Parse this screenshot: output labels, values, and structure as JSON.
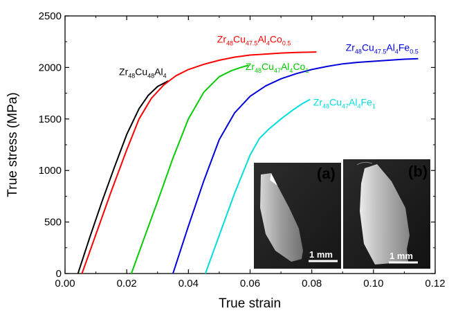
{
  "chart_data": {
    "type": "line",
    "xlabel": "True strain",
    "ylabel": "True stress (MPa)",
    "xlim": [
      0.0,
      0.12
    ],
    "ylim": [
      0,
      2500
    ],
    "xticks": [
      "0.00",
      "0.02",
      "0.04",
      "0.06",
      "0.08",
      "0.10",
      "0.12"
    ],
    "yticks": [
      "0",
      "500",
      "1000",
      "1500",
      "2000",
      "2500"
    ],
    "grid": false,
    "legend": "inline labels",
    "series": [
      {
        "name": "Zr48Cu48Al4",
        "label_parts": [
          [
            "Zr",
            ""
          ],
          [
            "48",
            "sub"
          ],
          [
            "Cu",
            ""
          ],
          [
            "48",
            "sub"
          ],
          [
            "Al",
            ""
          ],
          [
            "4",
            "sub"
          ]
        ],
        "color": "#000000",
        "x": [
          0.0042,
          0.008,
          0.012,
          0.016,
          0.02,
          0.024,
          0.027,
          0.03,
          0.0335
        ],
        "y": [
          0,
          350,
          700,
          1030,
          1350,
          1600,
          1730,
          1815,
          1870
        ]
      },
      {
        "name": "Zr48Cu47.5Al4Co0.5",
        "label_parts": [
          [
            "Zr",
            ""
          ],
          [
            "48",
            "sub"
          ],
          [
            "Cu",
            ""
          ],
          [
            "47.5",
            "sub"
          ],
          [
            "Al",
            ""
          ],
          [
            "4",
            "sub"
          ],
          [
            "Co",
            ""
          ],
          [
            "0.5",
            "sub"
          ]
        ],
        "color": "#ff0000",
        "x": [
          0.0055,
          0.01,
          0.015,
          0.02,
          0.024,
          0.028,
          0.032,
          0.036,
          0.04,
          0.045,
          0.05,
          0.055,
          0.06,
          0.065,
          0.07,
          0.075,
          0.0815
        ],
        "y": [
          0,
          380,
          800,
          1200,
          1500,
          1700,
          1830,
          1920,
          1980,
          2030,
          2070,
          2100,
          2120,
          2130,
          2140,
          2145,
          2150
        ]
      },
      {
        "name": "Zr48Cu47Al4Co1",
        "label_parts": [
          [
            "Zr",
            ""
          ],
          [
            "48",
            "sub"
          ],
          [
            "Cu",
            ""
          ],
          [
            "47",
            "sub"
          ],
          [
            "Al",
            ""
          ],
          [
            "4",
            "sub"
          ],
          [
            "Co",
            ""
          ],
          [
            "1",
            "sub"
          ]
        ],
        "color": "#00cc00",
        "x": [
          0.0215,
          0.025,
          0.03,
          0.035,
          0.04,
          0.045,
          0.05,
          0.054,
          0.057,
          0.0595
        ],
        "y": [
          0,
          290,
          700,
          1120,
          1500,
          1760,
          1910,
          1970,
          2000,
          2020
        ]
      },
      {
        "name": "Zr48Cu47.5Al4Fe0.5",
        "label_parts": [
          [
            "Zr",
            ""
          ],
          [
            "48",
            "sub"
          ],
          [
            "Cu",
            ""
          ],
          [
            "47.5",
            "sub"
          ],
          [
            "Al",
            ""
          ],
          [
            "4",
            "sub"
          ],
          [
            "Fe",
            ""
          ],
          [
            "0.5",
            "sub"
          ]
        ],
        "color": "#0000dd",
        "x": [
          0.035,
          0.04,
          0.045,
          0.05,
          0.055,
          0.06,
          0.065,
          0.07,
          0.075,
          0.08,
          0.085,
          0.09,
          0.095,
          0.1,
          0.105,
          0.11,
          0.1145
        ],
        "y": [
          0,
          460,
          900,
          1300,
          1560,
          1720,
          1820,
          1890,
          1940,
          1980,
          2010,
          2035,
          2050,
          2060,
          2070,
          2080,
          2085
        ]
      },
      {
        "name": "Zr48Cu47Al4Fe1",
        "label_parts": [
          [
            "Zr",
            ""
          ],
          [
            "48",
            "sub"
          ],
          [
            "Cu",
            ""
          ],
          [
            "47",
            "sub"
          ],
          [
            "Al",
            ""
          ],
          [
            "4",
            "sub"
          ],
          [
            "Fe",
            ""
          ],
          [
            "1",
            "sub"
          ]
        ],
        "color": "#00dddd",
        "x": [
          0.0455,
          0.05,
          0.055,
          0.06,
          0.063,
          0.066,
          0.07,
          0.074,
          0.077,
          0.0795
        ],
        "y": [
          0,
          370,
          780,
          1150,
          1310,
          1400,
          1500,
          1590,
          1650,
          1690
        ]
      }
    ],
    "insets": [
      {
        "tag": "(a)",
        "scale_bar": "1 mm"
      },
      {
        "tag": "(b)",
        "scale_bar": "1 mm"
      }
    ]
  }
}
